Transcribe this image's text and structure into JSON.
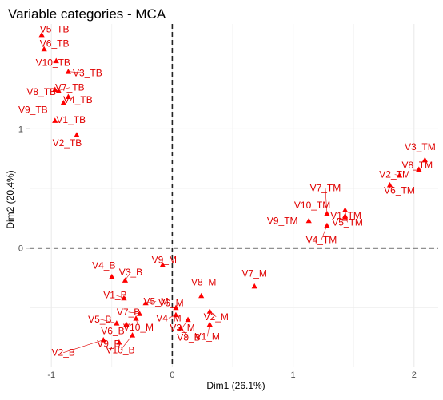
{
  "chart_data": {
    "type": "scatter",
    "title": "Variable categories - MCA",
    "xlabel": "Dim1 (26.1%)",
    "ylabel": "Dim2 (20.4%)",
    "xlim": [
      -1.18,
      2.2
    ],
    "ylim": [
      -1.0,
      1.88
    ],
    "xticks": [
      -1,
      0,
      1,
      2
    ],
    "yticks": [
      0,
      1
    ],
    "grid": true,
    "reference_lines": {
      "x": 0,
      "y": 0
    },
    "point_color": "#ff0000",
    "label_color": "#e00000",
    "points": [
      {
        "label": "V5_TB",
        "x": -1.08,
        "y": 1.79
      },
      {
        "label": "V6_TB",
        "x": -1.06,
        "y": 1.67
      },
      {
        "label": "V10_TB",
        "x": -0.96,
        "y": 1.57
      },
      {
        "label": "V3_TB",
        "x": -0.86,
        "y": 1.48
      },
      {
        "label": "V8_TB",
        "x": -0.97,
        "y": 1.33
      },
      {
        "label": "V7_TB",
        "x": -0.94,
        "y": 1.32
      },
      {
        "label": "V4_TB",
        "x": -0.86,
        "y": 1.27
      },
      {
        "label": "V9_TB",
        "x": -0.9,
        "y": 1.22
      },
      {
        "label": "V1_TB",
        "x": -0.97,
        "y": 1.07
      },
      {
        "label": "V2_TB",
        "x": -0.79,
        "y": 0.95
      },
      {
        "label": "V3_TM",
        "x": 2.09,
        "y": 0.74
      },
      {
        "label": "V8_TM",
        "x": 2.04,
        "y": 0.66
      },
      {
        "label": "V2_TM",
        "x": 1.88,
        "y": 0.61
      },
      {
        "label": "V6_TM",
        "x": 1.8,
        "y": 0.53
      },
      {
        "label": "V7_TM",
        "x": 1.28,
        "y": 0.29
      },
      {
        "label": "V1_TM",
        "x": 1.43,
        "y": 0.32
      },
      {
        "label": "V10_TM",
        "x": 1.43,
        "y": 0.26
      },
      {
        "label": "V5_TM",
        "x": 1.43,
        "y": 0.27
      },
      {
        "label": "V9_TM",
        "x": 1.13,
        "y": 0.23
      },
      {
        "label": "V4_TM",
        "x": 1.28,
        "y": 0.19
      },
      {
        "label": "V9_M",
        "x": -0.08,
        "y": -0.14
      },
      {
        "label": "V7_M",
        "x": 0.68,
        "y": -0.32
      },
      {
        "label": "V8_M",
        "x": 0.24,
        "y": -0.4
      },
      {
        "label": "V4_B",
        "x": -0.5,
        "y": -0.24
      },
      {
        "label": "V3_B",
        "x": -0.39,
        "y": -0.27
      },
      {
        "label": "V1_B",
        "x": -0.4,
        "y": -0.42
      },
      {
        "label": "V5_M",
        "x": -0.22,
        "y": -0.46
      },
      {
        "label": "V6_M",
        "x": 0.03,
        "y": -0.5
      },
      {
        "label": "V7_B",
        "x": -0.27,
        "y": -0.55
      },
      {
        "label": "V4_M",
        "x": 0.03,
        "y": -0.56
      },
      {
        "label": "V2_M",
        "x": 0.31,
        "y": -0.53
      },
      {
        "label": "V5_B",
        "x": -0.46,
        "y": -0.63
      },
      {
        "label": "V3_M",
        "x": 0.13,
        "y": -0.6
      },
      {
        "label": "V1_M",
        "x": 0.31,
        "y": -0.64
      },
      {
        "label": "V6_B",
        "x": -0.38,
        "y": -0.64
      },
      {
        "label": "V10_M",
        "x": -0.3,
        "y": -0.59
      },
      {
        "label": "V2_B",
        "x": -0.57,
        "y": -0.77
      },
      {
        "label": "V9_B",
        "x": -0.44,
        "y": -0.79
      },
      {
        "label": "V10_B",
        "x": -0.33,
        "y": -0.73
      },
      {
        "label": "V8_B",
        "x": 0.07,
        "y": -0.67
      }
    ]
  }
}
